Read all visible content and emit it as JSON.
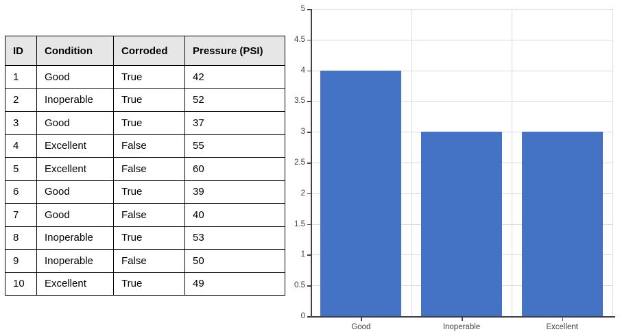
{
  "table": {
    "headers": [
      "ID",
      "Condition",
      "Corroded",
      "Pressure (PSI)"
    ],
    "rows": [
      [
        "1",
        "Good",
        "True",
        "42"
      ],
      [
        "2",
        "Inoperable",
        "True",
        "52"
      ],
      [
        "3",
        "Good",
        "True",
        "37"
      ],
      [
        "4",
        "Excellent",
        "False",
        "55"
      ],
      [
        "5",
        "Excellent",
        "False",
        "60"
      ],
      [
        "6",
        "Good",
        "True",
        "39"
      ],
      [
        "7",
        "Good",
        "False",
        "40"
      ],
      [
        "8",
        "Inoperable",
        "True",
        "53"
      ],
      [
        "9",
        "Inoperable",
        "False",
        "50"
      ],
      [
        "10",
        "Excellent",
        "True",
        "49"
      ]
    ]
  },
  "chart_data": {
    "type": "bar",
    "categories": [
      "Good",
      "Inoperable",
      "Excellent"
    ],
    "values": [
      4,
      3,
      3
    ],
    "title": "",
    "xlabel": "",
    "ylabel": "",
    "ylim": [
      0,
      5
    ],
    "yticks": [
      0,
      0.5,
      1,
      1.5,
      2,
      2.5,
      3,
      3.5,
      4,
      4.5,
      5
    ],
    "grid": true,
    "legend": false
  },
  "colors": {
    "bar": "#4472C4",
    "gridline": "#D9D9D9",
    "axis": "#404040",
    "tick_label": "#404040",
    "table_header_bg": "#E7E6E6",
    "table_border": "#000000"
  }
}
